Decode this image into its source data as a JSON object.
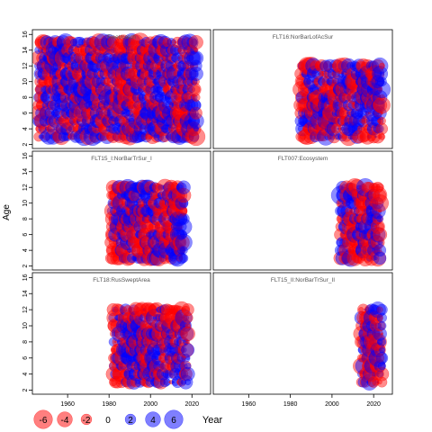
{
  "chart_data": {
    "type": "scatter",
    "subtype": "bubble-residuals",
    "ylabel": "Age",
    "xlabel": "Year",
    "colors": {
      "positive": "#0000ff",
      "negative": "#ff0000"
    },
    "x_ticks": [
      1960,
      1980,
      2000,
      2020
    ],
    "y_ticks": [
      2,
      4,
      6,
      8,
      10,
      12,
      14,
      16
    ],
    "xlim": [
      1943,
      2029
    ],
    "ylim": [
      1.5,
      16.6
    ],
    "legend": {
      "position": "bottom",
      "values": [
        -6,
        -4,
        -2,
        0,
        2,
        4,
        6
      ],
      "labels": [
        "-6",
        "-4",
        "-2",
        "0",
        "2",
        "4",
        "6"
      ]
    },
    "panels": [
      {
        "name": "fleet-catch",
        "title": "Fleet/catch",
        "years": [
          1946,
          2022
        ],
        "ages": [
          3,
          15
        ],
        "seed": 11
      },
      {
        "name": "flt16",
        "title": "FLT16:NorBarLofAcSur",
        "years": [
          1985,
          2024
        ],
        "ages": [
          3,
          12
        ],
        "seed": 23
      },
      {
        "name": "flt15-i",
        "title": "FLT15_I:NorBarTrSur_I",
        "years": [
          1981,
          2016
        ],
        "ages": [
          3,
          12
        ],
        "seed": 37
      },
      {
        "name": "flt007",
        "title": "FLT007:Ecosystem",
        "years": [
          2004,
          2023
        ],
        "ages": [
          3,
          12
        ],
        "seed": 41
      },
      {
        "name": "flt18",
        "title": "FLT18:RusSweptArea",
        "years": [
          1982,
          2018
        ],
        "ages": [
          3,
          12
        ],
        "seed": 53
      },
      {
        "name": "flt15-ii",
        "title": "FLT15_II:NorBarTrSur_II",
        "years": [
          2014,
          2024
        ],
        "ages": [
          3,
          12
        ],
        "seed": 67
      }
    ]
  }
}
